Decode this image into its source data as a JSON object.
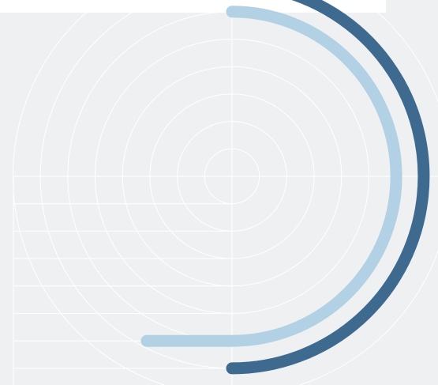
{
  "colors": {
    "background": "#eff0f2",
    "grid": "#ffffff",
    "panel": "#ffffff",
    "series_dark": "#3e6a90",
    "series_light": "#b3d1e4"
  },
  "chart_data": {
    "type": "radial-bar",
    "title": "",
    "grid": true,
    "legend": "none",
    "rings": 8,
    "series": [
      {
        "color": "#b3d1e4",
        "ring": 6,
        "start_angle_deg": 0,
        "end_angle_deg": 180,
        "tail_length_fraction": 0.39
      },
      {
        "color": "#3e6a90",
        "ring": 7,
        "start_angle_deg": 12,
        "end_angle_deg": 180,
        "tail_length_fraction": 0
      }
    ]
  }
}
